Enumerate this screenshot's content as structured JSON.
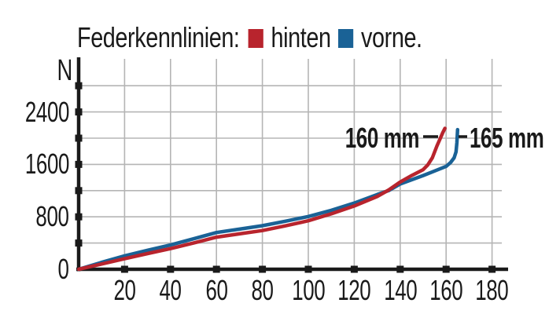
{
  "legend": {
    "title": "Federkennlinien:",
    "items": [
      {
        "label": "hinten",
        "color": "#b8242d"
      },
      {
        "label": "vorne.",
        "color": "#1a6296"
      }
    ]
  },
  "y_axis_unit": "N",
  "colors": {
    "axis": "#1a1a1a",
    "grid": "#b5b5b5",
    "text": "#1a1a1a",
    "hinten": "#b8242d",
    "vorne": "#1a6296"
  },
  "chart_data": {
    "type": "line",
    "title": "Federkennlinien",
    "x_unit": "mm",
    "y_unit": "N",
    "x_ticks": [
      20,
      40,
      60,
      80,
      100,
      120,
      140,
      160,
      180
    ],
    "y_labeled_ticks": [
      2400,
      1600,
      800,
      0
    ],
    "y_grid_step": 400,
    "y_grid_max": 2800,
    "xlim": [
      0,
      187
    ],
    "ylim": [
      0,
      3200
    ],
    "grid": true,
    "legend_position": "top",
    "series": [
      {
        "name": "hinten",
        "color": "#b8242d",
        "end_annotation": "160 mm",
        "points": [
          [
            0,
            0
          ],
          [
            10,
            80
          ],
          [
            20,
            160
          ],
          [
            30,
            240
          ],
          [
            40,
            315
          ],
          [
            50,
            400
          ],
          [
            60,
            490
          ],
          [
            70,
            540
          ],
          [
            80,
            590
          ],
          [
            90,
            662
          ],
          [
            100,
            740
          ],
          [
            110,
            845
          ],
          [
            120,
            965
          ],
          [
            130,
            1110
          ],
          [
            135,
            1210
          ],
          [
            140,
            1330
          ],
          [
            145,
            1430
          ],
          [
            150,
            1520
          ],
          [
            152,
            1590
          ],
          [
            154,
            1700
          ],
          [
            156,
            1880
          ],
          [
            157.5,
            2000
          ],
          [
            158.5,
            2080
          ],
          [
            159.5,
            2150
          ]
        ]
      },
      {
        "name": "vorne",
        "color": "#1a6296",
        "end_annotation": "165 mm",
        "points": [
          [
            0,
            0
          ],
          [
            10,
            105
          ],
          [
            20,
            205
          ],
          [
            30,
            290
          ],
          [
            40,
            370
          ],
          [
            50,
            465
          ],
          [
            60,
            560
          ],
          [
            70,
            612
          ],
          [
            80,
            665
          ],
          [
            90,
            733
          ],
          [
            100,
            805
          ],
          [
            110,
            900
          ],
          [
            120,
            1010
          ],
          [
            130,
            1140
          ],
          [
            135,
            1200
          ],
          [
            140,
            1300
          ],
          [
            145,
            1365
          ],
          [
            150,
            1430
          ],
          [
            155,
            1500
          ],
          [
            160,
            1570
          ],
          [
            162,
            1630
          ],
          [
            163.5,
            1700
          ],
          [
            164.3,
            1790
          ],
          [
            164.7,
            1930
          ],
          [
            165,
            2130
          ]
        ]
      }
    ],
    "annotations": [
      {
        "text": "160 mm",
        "series": "hinten"
      },
      {
        "text": "165 mm",
        "series": "vorne"
      }
    ]
  }
}
